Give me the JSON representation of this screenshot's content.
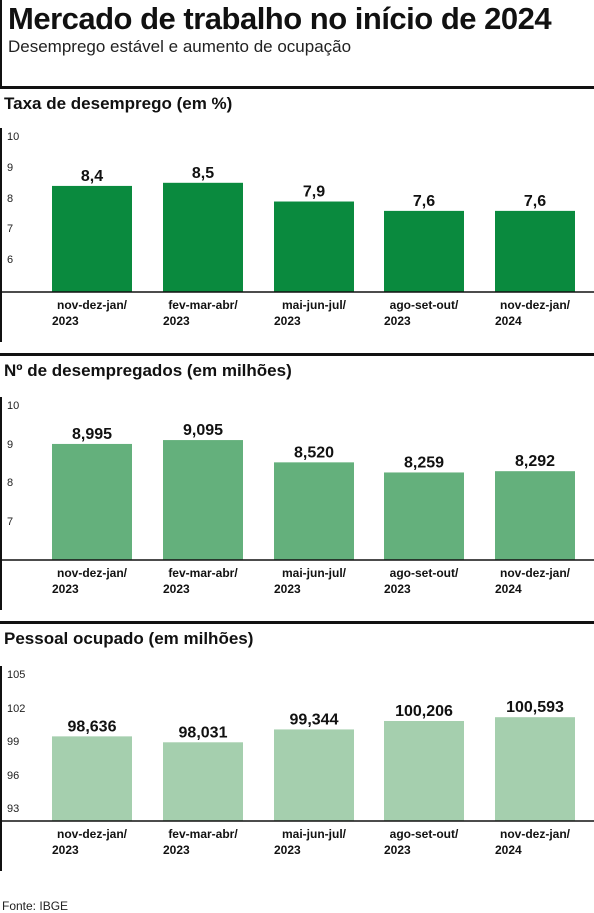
{
  "header": {
    "title": "Mercado de trabalho no início de 2024",
    "subtitle": "Desemprego estável e aumento de ocupação"
  },
  "source": "Fonte: IBGE",
  "colors": {
    "bar_dark": "#0a8a3e",
    "bar_medium": "#64b07c",
    "bar_light": "#a5cfae",
    "axis": "#111111"
  },
  "chart_data": [
    {
      "type": "bar",
      "title": "Taxa de desemprego (em %)",
      "categories": [
        [
          "nov-dez-jan/",
          "2023"
        ],
        [
          "fev-mar-abr/",
          "2023"
        ],
        [
          "mai-jun-jul/",
          "2023"
        ],
        [
          "ago-set-out/",
          "2023"
        ],
        [
          "nov-dez-jan/",
          "2024"
        ]
      ],
      "values": [
        8.4,
        8.5,
        7.9,
        7.6,
        7.6
      ],
      "value_labels": [
        "8,4",
        "8,5",
        "7,9",
        "7,6",
        "7,6"
      ],
      "yticks": [
        "10",
        "9",
        "8",
        "7",
        "6"
      ],
      "ylim": [
        5,
        10
      ],
      "color": "#0a8a3e",
      "grid": false
    },
    {
      "type": "bar",
      "title": "Nº de desempregados (em milhões)",
      "categories": [
        [
          "nov-dez-jan/",
          "2023"
        ],
        [
          "fev-mar-abr/",
          "2023"
        ],
        [
          "mai-jun-jul/",
          "2023"
        ],
        [
          "ago-set-out/",
          "2023"
        ],
        [
          "nov-dez-jan/",
          "2024"
        ]
      ],
      "values": [
        8.995,
        9.095,
        8.52,
        8.259,
        8.292
      ],
      "value_labels": [
        "8,995",
        "9,095",
        "8,520",
        "8,259",
        "8,292"
      ],
      "yticks": [
        "10",
        "9",
        "8",
        "7"
      ],
      "ylim": [
        6,
        10
      ],
      "color": "#64b07c",
      "grid": false
    },
    {
      "type": "bar",
      "title": "Pessoal ocupado (em milhões)",
      "categories": [
        [
          "nov-dez-jan/",
          "2023"
        ],
        [
          "fev-mar-abr/",
          "2023"
        ],
        [
          "mai-jun-jul/",
          "2023"
        ],
        [
          "ago-set-out/",
          "2023"
        ],
        [
          "nov-dez-jan/",
          "2024"
        ]
      ],
      "values": [
        98.636,
        98.031,
        99.344,
        100.206,
        100.593
      ],
      "value_labels": [
        "98,636",
        "98,031",
        "99,344",
        "100,206",
        "100,593"
      ],
      "yticks": [
        "105",
        "102",
        "99",
        "96",
        "93"
      ],
      "ylim": [
        90,
        105
      ],
      "color": "#a5cfae",
      "grid": false
    }
  ]
}
